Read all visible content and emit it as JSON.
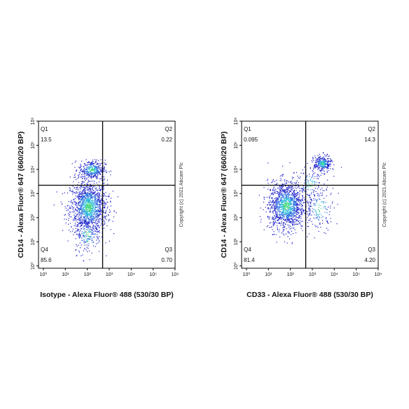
{
  "chart_data": [
    {
      "type": "flow-density",
      "title": null,
      "xlabel": "Isotype - Alexa Fluor® 488 (530/30 BP)",
      "ylabel": "CD14 - Alexa Fluor® 647 (660/20 BP)",
      "copyright": "Copyright (c) 2021 Abcam Plc",
      "log": true,
      "xlim": [
        0.6,
        1000000
      ],
      "ylim": [
        0.8,
        1000000
      ],
      "xticks": [
        {
          "value": 1,
          "label": "10⁰"
        },
        {
          "value": 10,
          "label": "10¹"
        },
        {
          "value": 100,
          "label": "10²"
        },
        {
          "value": 1000,
          "label": "10³"
        },
        {
          "value": 10000,
          "label": "10⁴"
        },
        {
          "value": 100000,
          "label": "10⁵"
        },
        {
          "value": 1000000,
          "label": "10⁶"
        }
      ],
      "yticks": [
        {
          "value": 1,
          "label": "10⁰"
        },
        {
          "value": 10,
          "label": "10¹"
        },
        {
          "value": 100,
          "label": "10²"
        },
        {
          "value": 1000,
          "label": "10³"
        },
        {
          "value": 10000,
          "label": "10⁴"
        },
        {
          "value": 100000,
          "label": "10⁵"
        },
        {
          "value": 1000000,
          "label": "10⁶"
        }
      ],
      "gate_x": 500,
      "gate_y": 2200,
      "quadrants": {
        "names": [
          "Q1",
          "Q2",
          "Q3",
          "Q4"
        ],
        "values": [
          13.5,
          0.22,
          0.7,
          85.6
        ],
        "value_labels": [
          "13.5",
          "0.22",
          "0.70",
          "85.6"
        ]
      }
    },
    {
      "type": "flow-density",
      "title": null,
      "xlabel": "CD33 - Alexa Fluor® 488 (530/30 BP)",
      "ylabel": "CD14 - Alexa Fluor® 647 (660/20 BP)",
      "copyright": "Copyright (c) 2021 Abcam Plc",
      "log": true,
      "xlim": [
        0.6,
        1000000
      ],
      "ylim": [
        0.8,
        1000000
      ],
      "xticks": [
        {
          "value": 1,
          "label": "10⁰"
        },
        {
          "value": 10,
          "label": "10¹"
        },
        {
          "value": 100,
          "label": "10²"
        },
        {
          "value": 1000,
          "label": "10³"
        },
        {
          "value": 10000,
          "label": "10⁴"
        },
        {
          "value": 100000,
          "label": "10⁵"
        },
        {
          "value": 1000000,
          "label": "10⁶"
        }
      ],
      "yticks": [
        {
          "value": 1,
          "label": "10⁰"
        },
        {
          "value": 10,
          "label": "10¹"
        },
        {
          "value": 100,
          "label": "10²"
        },
        {
          "value": 1000,
          "label": "10³"
        },
        {
          "value": 10000,
          "label": "10⁴"
        },
        {
          "value": 100000,
          "label": "10⁵"
        },
        {
          "value": 1000000,
          "label": "10⁶"
        }
      ],
      "gate_x": 500,
      "gate_y": 2200,
      "quadrants": {
        "names": [
          "Q1",
          "Q2",
          "Q3",
          "Q4"
        ],
        "values": [
          0.095,
          14.3,
          4.2,
          81.4
        ],
        "value_labels": [
          "0.095",
          "14.3",
          "4.20",
          "81.4"
        ]
      }
    }
  ]
}
